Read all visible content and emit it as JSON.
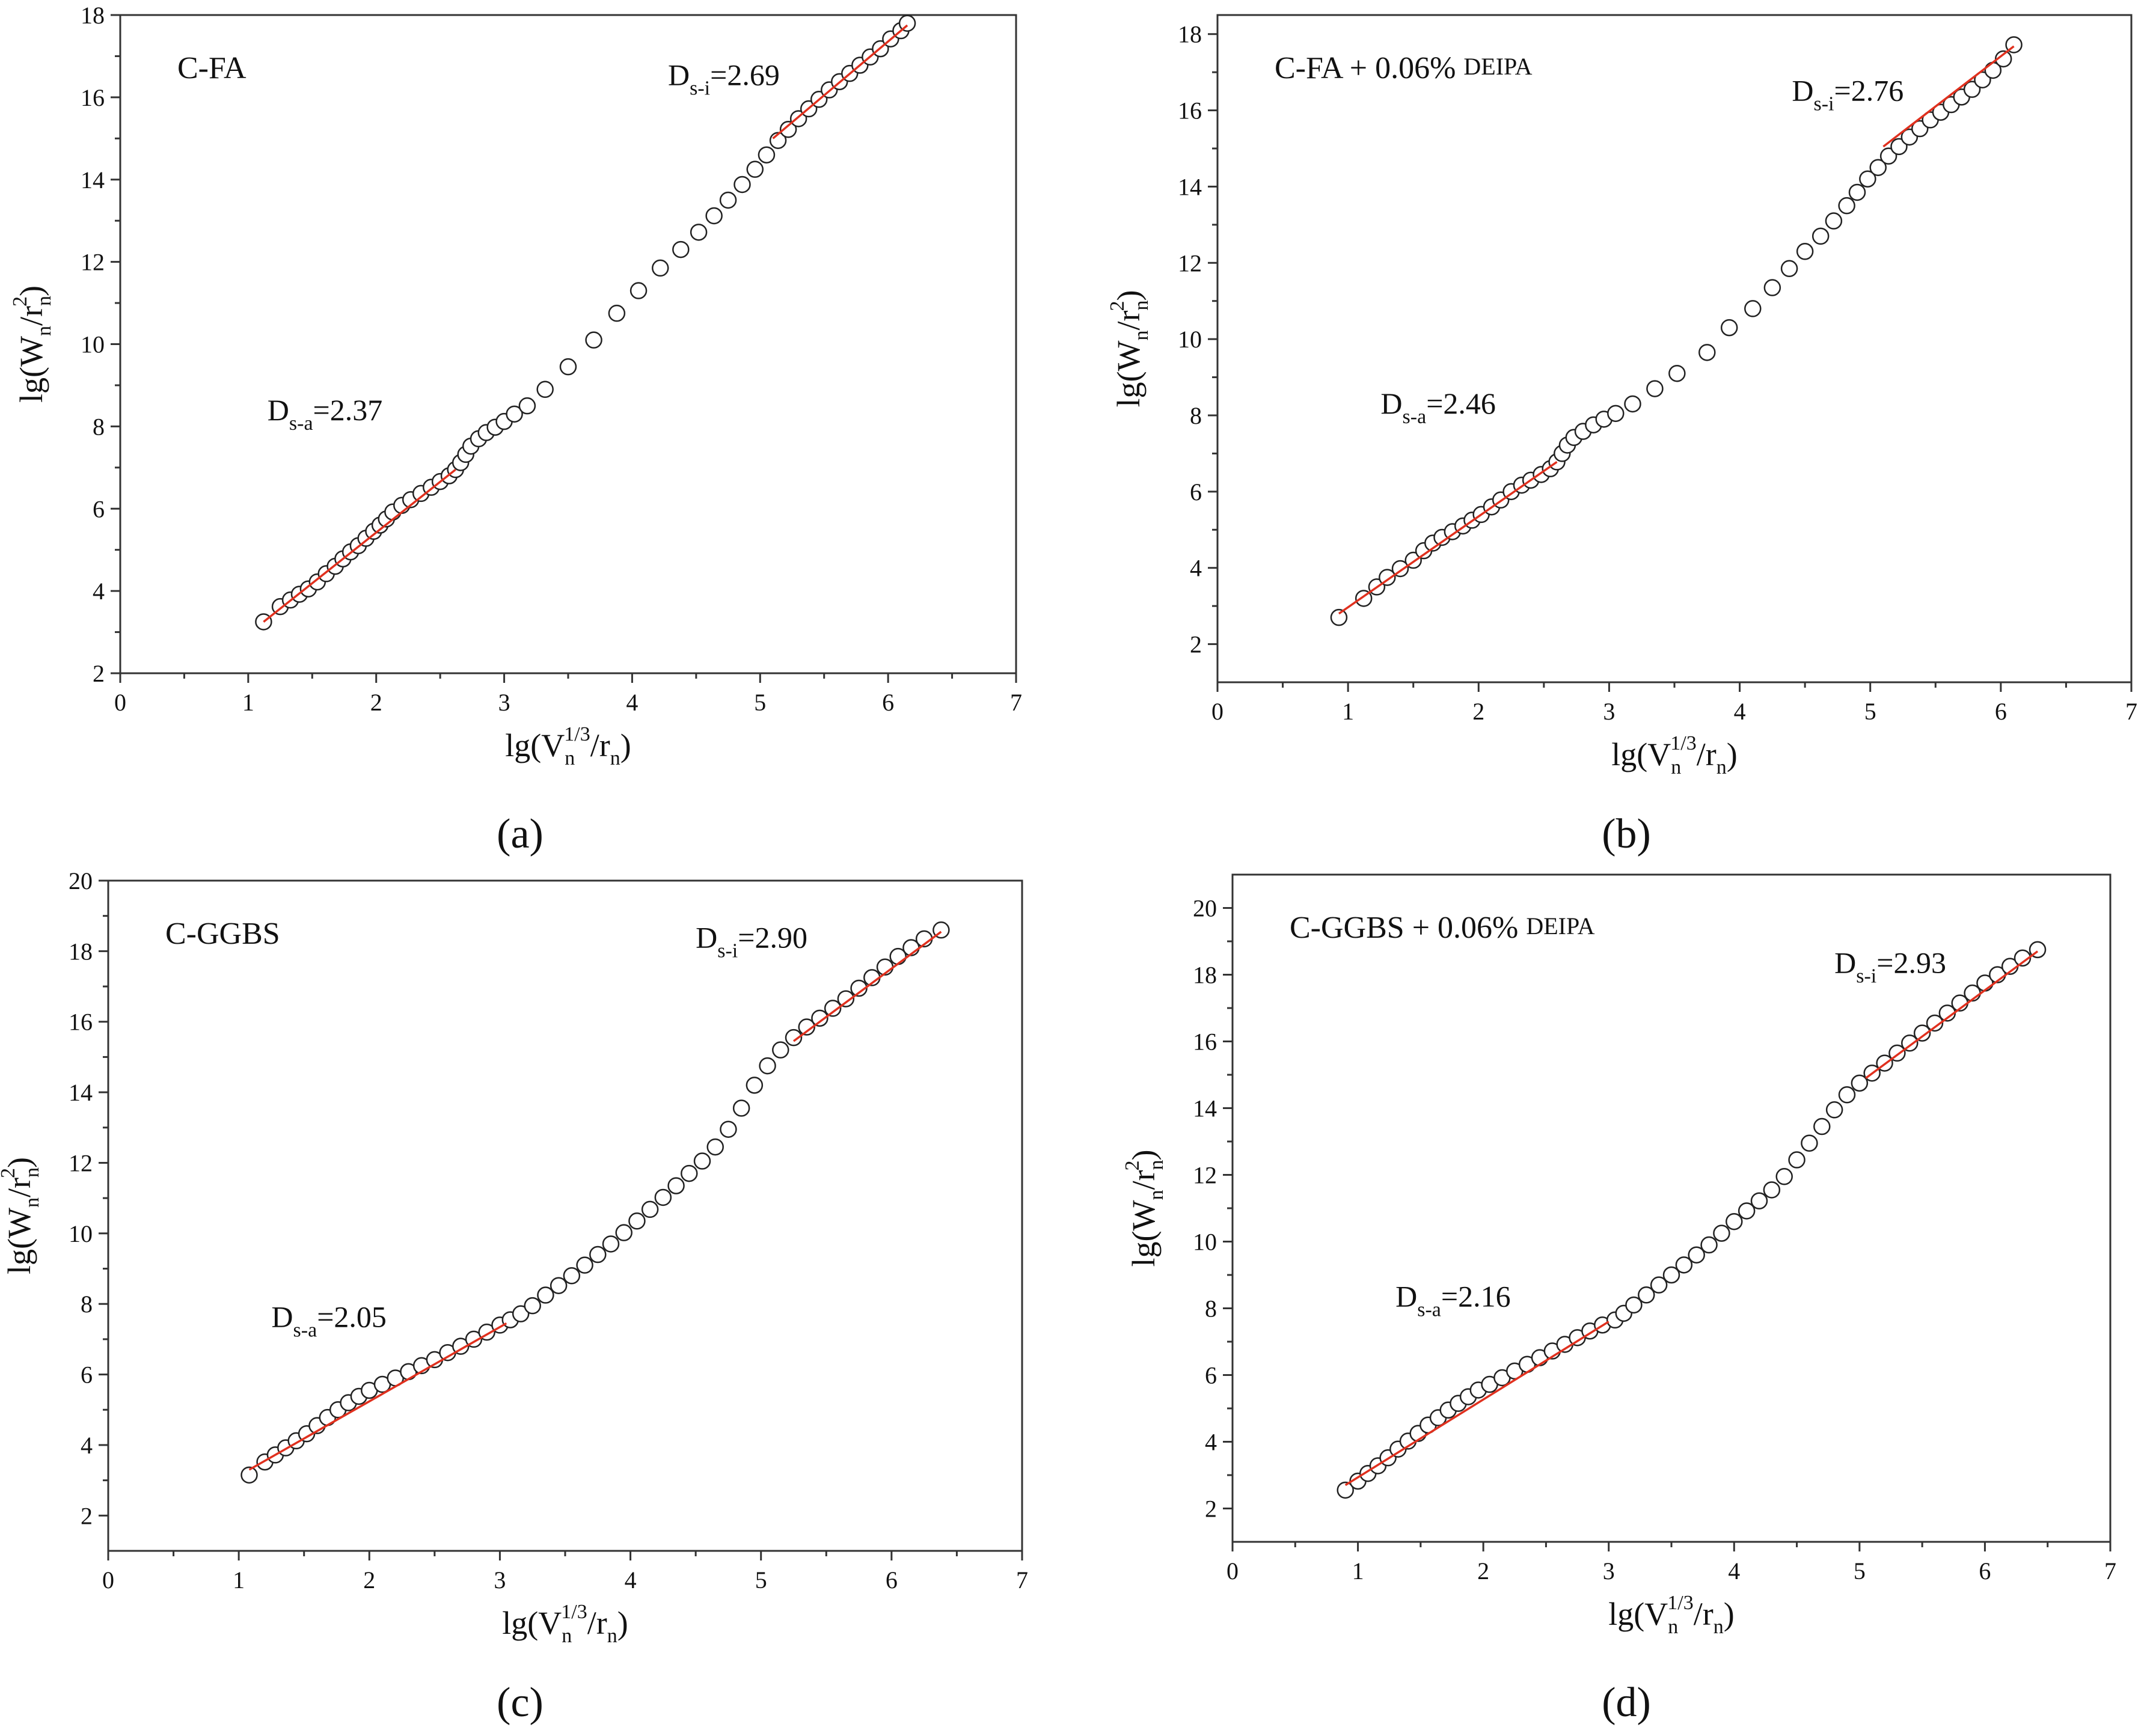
{
  "chart_data": [
    {
      "type": "scatter",
      "caption": "(a)",
      "label": "C-FA",
      "xlabel": "lg(Vn^1/3/rn)",
      "ylabel": "lg(Wn/rn^2)",
      "xlim": [
        0,
        7
      ],
      "ylim": [
        2,
        18
      ],
      "xticks": [
        0,
        1,
        2,
        3,
        4,
        5,
        6,
        7
      ],
      "yticks": [
        2,
        4,
        6,
        8,
        10,
        12,
        14,
        16,
        18
      ],
      "points": [
        [
          1.12,
          3.25
        ],
        [
          1.25,
          3.62
        ],
        [
          1.33,
          3.78
        ],
        [
          1.4,
          3.92
        ],
        [
          1.47,
          4.05
        ],
        [
          1.54,
          4.22
        ],
        [
          1.61,
          4.42
        ],
        [
          1.68,
          4.6
        ],
        [
          1.74,
          4.78
        ],
        [
          1.8,
          4.95
        ],
        [
          1.86,
          5.1
        ],
        [
          1.92,
          5.28
        ],
        [
          1.98,
          5.45
        ],
        [
          2.03,
          5.6
        ],
        [
          2.08,
          5.75
        ],
        [
          2.13,
          5.92
        ],
        [
          2.2,
          6.08
        ],
        [
          2.27,
          6.22
        ],
        [
          2.35,
          6.37
        ],
        [
          2.43,
          6.52
        ],
        [
          2.5,
          6.66
        ],
        [
          2.57,
          6.8
        ],
        [
          2.62,
          6.95
        ],
        [
          2.66,
          7.12
        ],
        [
          2.7,
          7.32
        ],
        [
          2.74,
          7.52
        ],
        [
          2.8,
          7.7
        ],
        [
          2.86,
          7.85
        ],
        [
          2.93,
          7.98
        ],
        [
          3.0,
          8.12
        ],
        [
          3.08,
          8.3
        ],
        [
          3.18,
          8.5
        ],
        [
          3.32,
          8.9
        ],
        [
          3.5,
          9.45
        ],
        [
          3.7,
          10.1
        ],
        [
          3.88,
          10.75
        ],
        [
          4.05,
          11.3
        ],
        [
          4.22,
          11.85
        ],
        [
          4.38,
          12.3
        ],
        [
          4.52,
          12.72
        ],
        [
          4.64,
          13.12
        ],
        [
          4.75,
          13.5
        ],
        [
          4.86,
          13.88
        ],
        [
          4.96,
          14.25
        ],
        [
          5.05,
          14.6
        ],
        [
          5.14,
          14.95
        ],
        [
          5.22,
          15.22
        ],
        [
          5.3,
          15.48
        ],
        [
          5.38,
          15.72
        ],
        [
          5.46,
          15.95
        ],
        [
          5.54,
          16.18
        ],
        [
          5.62,
          16.38
        ],
        [
          5.7,
          16.58
        ],
        [
          5.78,
          16.78
        ],
        [
          5.86,
          16.98
        ],
        [
          5.94,
          17.18
        ],
        [
          6.02,
          17.42
        ],
        [
          6.1,
          17.62
        ],
        [
          6.15,
          17.8
        ]
      ],
      "fits": [
        {
          "name": "Ds-a",
          "x": [
            1.12,
            2.62
          ],
          "y": [
            3.25,
            6.95
          ]
        },
        {
          "name": "Ds-i",
          "x": [
            5.1,
            6.15
          ],
          "y": [
            15.0,
            17.75
          ]
        }
      ],
      "annotations": [
        {
          "prefix": "D",
          "sub": "s-a",
          "suffix": "=2.37",
          "x": 1.15,
          "y": 8.15
        },
        {
          "prefix": "D",
          "sub": "s-i",
          "suffix": "=2.69",
          "x": 4.28,
          "y": 16.3
        }
      ]
    },
    {
      "type": "scatter",
      "caption": "(b)",
      "label": "C-FA + 0.06% ",
      "label_small": "DEIPA",
      "xlabel": "lg(Vn^1/3/rn)",
      "ylabel": "lg(Wn/rn^2)",
      "xlim": [
        0,
        7
      ],
      "ylim": [
        1,
        18.5
      ],
      "xticks": [
        0,
        1,
        2,
        3,
        4,
        5,
        6,
        7
      ],
      "yticks": [
        2,
        4,
        6,
        8,
        10,
        12,
        14,
        16,
        18
      ],
      "points": [
        [
          0.93,
          2.7
        ],
        [
          1.12,
          3.2
        ],
        [
          1.22,
          3.5
        ],
        [
          1.3,
          3.75
        ],
        [
          1.4,
          3.98
        ],
        [
          1.5,
          4.2
        ],
        [
          1.58,
          4.45
        ],
        [
          1.65,
          4.65
        ],
        [
          1.72,
          4.8
        ],
        [
          1.8,
          4.95
        ],
        [
          1.88,
          5.1
        ],
        [
          1.95,
          5.25
        ],
        [
          2.02,
          5.4
        ],
        [
          2.1,
          5.6
        ],
        [
          2.17,
          5.78
        ],
        [
          2.25,
          6.0
        ],
        [
          2.33,
          6.17
        ],
        [
          2.4,
          6.3
        ],
        [
          2.48,
          6.45
        ],
        [
          2.55,
          6.6
        ],
        [
          2.6,
          6.78
        ],
        [
          2.64,
          7.0
        ],
        [
          2.68,
          7.22
        ],
        [
          2.73,
          7.42
        ],
        [
          2.8,
          7.58
        ],
        [
          2.88,
          7.75
        ],
        [
          2.96,
          7.9
        ],
        [
          3.05,
          8.05
        ],
        [
          3.18,
          8.3
        ],
        [
          3.35,
          8.7
        ],
        [
          3.52,
          9.1
        ],
        [
          3.75,
          9.65
        ],
        [
          3.92,
          10.3
        ],
        [
          4.1,
          10.8
        ],
        [
          4.25,
          11.35
        ],
        [
          4.38,
          11.85
        ],
        [
          4.5,
          12.3
        ],
        [
          4.62,
          12.7
        ],
        [
          4.72,
          13.1
        ],
        [
          4.82,
          13.5
        ],
        [
          4.9,
          13.85
        ],
        [
          4.98,
          14.2
        ],
        [
          5.06,
          14.5
        ],
        [
          5.14,
          14.8
        ],
        [
          5.22,
          15.05
        ],
        [
          5.3,
          15.3
        ],
        [
          5.38,
          15.52
        ],
        [
          5.46,
          15.75
        ],
        [
          5.54,
          15.95
        ],
        [
          5.62,
          16.15
        ],
        [
          5.7,
          16.35
        ],
        [
          5.78,
          16.55
        ],
        [
          5.86,
          16.8
        ],
        [
          5.94,
          17.05
        ],
        [
          6.02,
          17.35
        ],
        [
          6.1,
          17.72
        ]
      ],
      "fits": [
        {
          "name": "Ds-a",
          "x": [
            0.93,
            2.6
          ],
          "y": [
            2.8,
            6.78
          ]
        },
        {
          "name": "Ds-i",
          "x": [
            5.1,
            6.1
          ],
          "y": [
            15.05,
            17.68
          ]
        }
      ],
      "annotations": [
        {
          "prefix": "D",
          "sub": "s-a",
          "suffix": "=2.46",
          "x": 1.25,
          "y": 8.05
        },
        {
          "prefix": "D",
          "sub": "s-i",
          "suffix": "=2.76",
          "x": 4.4,
          "y": 16.25
        }
      ]
    },
    {
      "type": "scatter",
      "caption": "(c)",
      "label": "C-GGBS",
      "xlabel": "lg(Vn^1/3/rn)",
      "ylabel": "lg(Wn/rn^2)",
      "xlim": [
        0,
        7
      ],
      "ylim": [
        1,
        20
      ],
      "xticks": [
        0,
        1,
        2,
        3,
        4,
        5,
        6,
        7
      ],
      "yticks": [
        2,
        4,
        6,
        8,
        10,
        12,
        14,
        16,
        18,
        20
      ],
      "points": [
        [
          1.08,
          3.15
        ],
        [
          1.2,
          3.52
        ],
        [
          1.28,
          3.72
        ],
        [
          1.36,
          3.92
        ],
        [
          1.44,
          4.12
        ],
        [
          1.52,
          4.32
        ],
        [
          1.6,
          4.55
        ],
        [
          1.68,
          4.78
        ],
        [
          1.76,
          5.0
        ],
        [
          1.84,
          5.2
        ],
        [
          1.92,
          5.38
        ],
        [
          2.0,
          5.55
        ],
        [
          2.1,
          5.72
        ],
        [
          2.2,
          5.9
        ],
        [
          2.3,
          6.08
        ],
        [
          2.4,
          6.25
        ],
        [
          2.5,
          6.42
        ],
        [
          2.6,
          6.62
        ],
        [
          2.7,
          6.8
        ],
        [
          2.8,
          7.0
        ],
        [
          2.9,
          7.2
        ],
        [
          3.0,
          7.4
        ],
        [
          3.08,
          7.55
        ],
        [
          3.16,
          7.72
        ],
        [
          3.25,
          7.95
        ],
        [
          3.35,
          8.25
        ],
        [
          3.45,
          8.52
        ],
        [
          3.55,
          8.8
        ],
        [
          3.65,
          9.1
        ],
        [
          3.75,
          9.4
        ],
        [
          3.85,
          9.7
        ],
        [
          3.95,
          10.02
        ],
        [
          4.05,
          10.35
        ],
        [
          4.15,
          10.68
        ],
        [
          4.25,
          11.02
        ],
        [
          4.35,
          11.35
        ],
        [
          4.45,
          11.7
        ],
        [
          4.55,
          12.05
        ],
        [
          4.65,
          12.45
        ],
        [
          4.75,
          12.95
        ],
        [
          4.85,
          13.55
        ],
        [
          4.95,
          14.2
        ],
        [
          5.05,
          14.75
        ],
        [
          5.15,
          15.2
        ],
        [
          5.25,
          15.55
        ],
        [
          5.35,
          15.85
        ],
        [
          5.45,
          16.1
        ],
        [
          5.55,
          16.38
        ],
        [
          5.65,
          16.65
        ],
        [
          5.75,
          16.95
        ],
        [
          5.85,
          17.25
        ],
        [
          5.95,
          17.55
        ],
        [
          6.05,
          17.85
        ],
        [
          6.15,
          18.1
        ],
        [
          6.25,
          18.35
        ],
        [
          6.38,
          18.6
        ]
      ],
      "fits": [
        {
          "name": "Ds-a",
          "x": [
            1.08,
            3.05
          ],
          "y": [
            3.3,
            7.45
          ]
        },
        {
          "name": "Ds-i",
          "x": [
            5.25,
            6.38
          ],
          "y": [
            15.45,
            18.55
          ]
        }
      ],
      "annotations": [
        {
          "prefix": "D",
          "sub": "s-a",
          "suffix": "=2.05",
          "x": 1.25,
          "y": 7.35
        },
        {
          "prefix": "D",
          "sub": "s-i",
          "suffix": "=2.90",
          "x": 4.5,
          "y": 18.1
        }
      ]
    },
    {
      "type": "scatter",
      "caption": "(d)",
      "label": "C-GGBS + 0.06% ",
      "label_small": "DEIPA",
      "xlabel": "lg(Vn^1/3/rn)",
      "ylabel": "lg(Wn/rn^2)",
      "xlim": [
        0,
        7
      ],
      "ylim": [
        1,
        21
      ],
      "xticks": [
        0,
        1,
        2,
        3,
        4,
        5,
        6,
        7
      ],
      "yticks": [
        2,
        4,
        6,
        8,
        10,
        12,
        14,
        16,
        18,
        20
      ],
      "points": [
        [
          0.9,
          2.55
        ],
        [
          1.0,
          2.82
        ],
        [
          1.08,
          3.05
        ],
        [
          1.16,
          3.28
        ],
        [
          1.24,
          3.52
        ],
        [
          1.32,
          3.78
        ],
        [
          1.4,
          4.02
        ],
        [
          1.48,
          4.25
        ],
        [
          1.56,
          4.5
        ],
        [
          1.64,
          4.72
        ],
        [
          1.72,
          4.95
        ],
        [
          1.8,
          5.15
        ],
        [
          1.88,
          5.35
        ],
        [
          1.96,
          5.55
        ],
        [
          2.05,
          5.72
        ],
        [
          2.15,
          5.92
        ],
        [
          2.25,
          6.12
        ],
        [
          2.35,
          6.32
        ],
        [
          2.45,
          6.52
        ],
        [
          2.55,
          6.72
        ],
        [
          2.65,
          6.92
        ],
        [
          2.75,
          7.12
        ],
        [
          2.85,
          7.32
        ],
        [
          2.95,
          7.5
        ],
        [
          3.05,
          7.65
        ],
        [
          3.12,
          7.85
        ],
        [
          3.2,
          8.1
        ],
        [
          3.3,
          8.4
        ],
        [
          3.4,
          8.7
        ],
        [
          3.5,
          9.0
        ],
        [
          3.6,
          9.3
        ],
        [
          3.7,
          9.6
        ],
        [
          3.8,
          9.9
        ],
        [
          3.9,
          10.25
        ],
        [
          4.0,
          10.6
        ],
        [
          4.1,
          10.92
        ],
        [
          4.2,
          11.22
        ],
        [
          4.3,
          11.55
        ],
        [
          4.4,
          11.95
        ],
        [
          4.5,
          12.45
        ],
        [
          4.6,
          12.95
        ],
        [
          4.7,
          13.45
        ],
        [
          4.8,
          13.95
        ],
        [
          4.9,
          14.4
        ],
        [
          5.0,
          14.75
        ],
        [
          5.1,
          15.05
        ],
        [
          5.2,
          15.35
        ],
        [
          5.3,
          15.65
        ],
        [
          5.4,
          15.95
        ],
        [
          5.5,
          16.25
        ],
        [
          5.6,
          16.55
        ],
        [
          5.7,
          16.85
        ],
        [
          5.8,
          17.15
        ],
        [
          5.9,
          17.45
        ],
        [
          6.0,
          17.75
        ],
        [
          6.1,
          18.0
        ],
        [
          6.2,
          18.25
        ],
        [
          6.3,
          18.5
        ],
        [
          6.42,
          18.75
        ]
      ],
      "fits": [
        {
          "name": "Ds-a",
          "x": [
            0.9,
            3.0
          ],
          "y": [
            2.7,
            7.6
          ]
        },
        {
          "name": "Ds-i",
          "x": [
            5.05,
            6.42
          ],
          "y": [
            14.9,
            18.7
          ]
        }
      ],
      "annotations": [
        {
          "prefix": "D",
          "sub": "s-a",
          "suffix": "=2.16",
          "x": 1.3,
          "y": 8.05
        },
        {
          "prefix": "D",
          "sub": "s-i",
          "suffix": "=2.93",
          "x": 4.8,
          "y": 18.05
        }
      ]
    }
  ]
}
